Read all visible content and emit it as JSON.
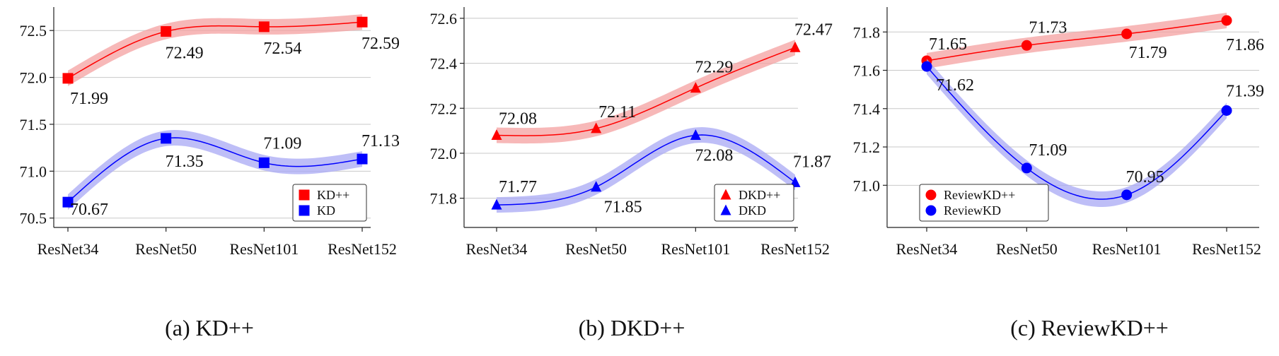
{
  "chart_data": [
    {
      "type": "line",
      "caption": "(a) KD++",
      "categories": [
        "ResNet34",
        "ResNet50",
        "ResNet101",
        "ResNet152"
      ],
      "yticks": [
        "70.5",
        "71.0",
        "71.5",
        "72.0",
        "72.5"
      ],
      "ylim": [
        70.4,
        72.75
      ],
      "grid": "horizontal",
      "legend_position": "bottom-right",
      "marker": "square",
      "series": [
        {
          "name": "KD++",
          "color": "#ff0000",
          "band_color": "#f4a0a0",
          "values": [
            71.99,
            72.49,
            72.54,
            72.59
          ],
          "labels": [
            "71.99",
            "72.49",
            "72.54",
            "72.59"
          ]
        },
        {
          "name": "KD",
          "color": "#0000ff",
          "band_color": "#a8a8f4",
          "values": [
            70.67,
            71.35,
            71.09,
            71.13
          ],
          "labels": [
            "70.67",
            "71.35",
            "71.09",
            "71.13"
          ]
        }
      ]
    },
    {
      "type": "line",
      "caption": "(b) DKD++",
      "categories": [
        "ResNet34",
        "ResNet50",
        "ResNet101",
        "ResNet152"
      ],
      "yticks": [
        "71.8",
        "72.0",
        "72.2",
        "72.4",
        "72.6"
      ],
      "ylim": [
        71.67,
        72.65
      ],
      "grid": "horizontal",
      "legend_position": "bottom-right",
      "marker": "triangle",
      "series": [
        {
          "name": "DKD++",
          "color": "#ff0000",
          "band_color": "#f4a0a0",
          "values": [
            72.08,
            72.11,
            72.29,
            72.47
          ],
          "labels": [
            "72.08",
            "72.11",
            "72.29",
            "72.47"
          ]
        },
        {
          "name": "DKD",
          "color": "#0000ff",
          "band_color": "#a8a8f4",
          "values": [
            71.77,
            71.85,
            72.08,
            71.87
          ],
          "labels": [
            "71.77",
            "71.85",
            "72.08",
            "71.87"
          ]
        }
      ]
    },
    {
      "type": "line",
      "caption": "(c) ReviewKD++",
      "categories": [
        "ResNet34",
        "ResNet50",
        "ResNet101",
        "ResNet152"
      ],
      "yticks": [
        "71.0",
        "71.2",
        "71.4",
        "71.6",
        "71.8"
      ],
      "ylim": [
        70.78,
        71.93
      ],
      "grid": "horizontal",
      "legend_position": "bottom-left",
      "marker": "circle",
      "series": [
        {
          "name": "ReviewKD++",
          "color": "#ff0000",
          "band_color": "#f4a0a0",
          "values": [
            71.65,
            71.73,
            71.79,
            71.86
          ],
          "labels": [
            "71.65",
            "71.73",
            "71.79",
            "71.86"
          ]
        },
        {
          "name": "ReviewKD",
          "color": "#0000ff",
          "band_color": "#a8a8f4",
          "values": [
            71.62,
            71.09,
            70.95,
            71.39
          ],
          "labels": [
            "71.62",
            "71.09",
            "70.95",
            "71.39"
          ]
        }
      ]
    }
  ]
}
